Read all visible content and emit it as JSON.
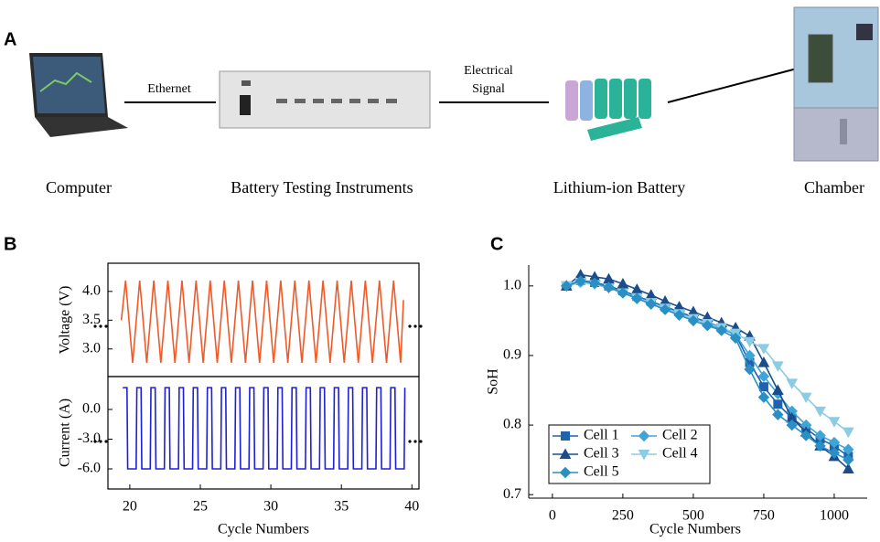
{
  "panel_a": {
    "panel_label": "A",
    "nodes": [
      {
        "label": "Computer"
      },
      {
        "label": "Battery Testing Instruments"
      },
      {
        "label": "Lithium-ion Battery"
      },
      {
        "label": "Chamber"
      }
    ],
    "links": [
      {
        "lines": [
          "Ethernet"
        ]
      },
      {
        "lines": [
          "Electrical",
          "Signal"
        ]
      }
    ]
  },
  "chart_data": [
    {
      "type": "line",
      "panel_label": "B",
      "ylabel": "Voltage (V)",
      "color": "#f05a28",
      "x": [
        19.4,
        19.7,
        20.2,
        20.7,
        21.2,
        21.7,
        22.2,
        22.7,
        23.2,
        23.7,
        24.2,
        24.7,
        25.2,
        25.7,
        26.2,
        26.7,
        27.2,
        27.7,
        28.2,
        28.7,
        29.2,
        29.7,
        30.2,
        30.7,
        31.2,
        31.7,
        32.2,
        32.7,
        33.2,
        33.7,
        34.2,
        34.7,
        35.2,
        35.7,
        36.2,
        36.7,
        37.2,
        37.7,
        38.2,
        38.7,
        39.2,
        39.4
      ],
      "values": [
        3.5,
        4.19,
        2.76,
        4.19,
        2.76,
        4.19,
        2.76,
        4.19,
        2.76,
        4.19,
        2.76,
        4.19,
        2.76,
        4.19,
        2.76,
        4.19,
        2.76,
        4.19,
        2.76,
        4.19,
        2.76,
        4.19,
        2.76,
        4.19,
        2.76,
        4.19,
        2.76,
        4.19,
        2.76,
        4.19,
        2.76,
        4.19,
        2.76,
        4.19,
        2.76,
        4.19,
        2.76,
        4.19,
        2.76,
        4.19,
        2.76,
        3.85
      ],
      "xlim": [
        18.45,
        40.5
      ],
      "ylim": [
        2.52,
        4.49
      ],
      "yticks": [
        {
          "value": 3,
          "label": "3.0"
        },
        {
          "value": 3.5,
          "label": "3.5"
        },
        {
          "value": 4,
          "label": "4.0"
        }
      ]
    },
    {
      "type": "line",
      "ylabel": "Current (A)",
      "xlabel": "Cycle Numbers",
      "color": "#1f1fd6",
      "x": [
        19.5,
        19.8,
        19.85,
        20.45,
        20.5,
        20.8,
        20.85,
        21.45,
        21.5,
        21.8,
        21.85,
        22.45,
        22.5,
        22.8,
        22.85,
        23.45,
        23.5,
        23.8,
        23.85,
        24.45,
        24.5,
        24.8,
        24.85,
        25.45,
        25.5,
        25.8,
        25.85,
        26.45,
        26.5,
        26.8,
        26.85,
        27.45,
        27.5,
        27.8,
        27.85,
        28.45,
        28.5,
        28.8,
        28.85,
        29.45,
        29.5,
        29.8,
        29.85,
        30.45,
        30.5,
        30.8,
        30.85,
        31.45,
        31.5,
        31.8,
        31.85,
        32.45,
        32.5,
        32.8,
        32.85,
        33.45,
        33.5,
        33.8,
        33.85,
        34.45,
        34.5,
        34.8,
        34.85,
        35.45,
        35.5,
        35.8,
        35.85,
        36.45,
        36.5,
        36.8,
        36.85,
        37.45,
        37.5,
        37.8,
        37.85,
        38.45,
        38.5,
        38.8,
        38.85,
        39.45,
        39.5
      ],
      "values": [
        2.2,
        2.2,
        -6,
        -6,
        2.2,
        2.2,
        -6,
        -6,
        2.2,
        2.2,
        -6,
        -6,
        2.2,
        2.2,
        -6,
        -6,
        2.2,
        2.2,
        -6,
        -6,
        2.2,
        2.2,
        -6,
        -6,
        2.2,
        2.2,
        -6,
        -6,
        2.2,
        2.2,
        -6,
        -6,
        2.2,
        2.2,
        -6,
        -6,
        2.2,
        2.2,
        -6,
        -6,
        2.2,
        2.2,
        -6,
        -6,
        2.2,
        2.2,
        -6,
        -6,
        2.2,
        2.2,
        -6,
        -6,
        2.2,
        2.2,
        -6,
        -6,
        2.2,
        2.2,
        -6,
        -6,
        2.2,
        2.2,
        -6,
        -6,
        2.2,
        2.2,
        -6,
        -6,
        2.2,
        2.2,
        -6,
        -6,
        2.2,
        2.2,
        -6,
        -6,
        2.2,
        2.2,
        -6,
        -6,
        2.2
      ],
      "xlim": [
        18.45,
        40.5
      ],
      "ylim": [
        -8.03,
        3.32
      ],
      "xticks": [
        20,
        25,
        30,
        35,
        40
      ],
      "yticks": [
        {
          "value": -6,
          "label": "-6.0"
        },
        {
          "value": -3,
          "label": "-3.0"
        },
        {
          "value": 0,
          "label": "0.0"
        }
      ]
    },
    {
      "type": "line",
      "panel_label": "C",
      "ylabel": "SoH",
      "xlabel": "Cycle Numbers",
      "legend": "lower left",
      "x": [
        50,
        100,
        150,
        200,
        250,
        300,
        350,
        400,
        450,
        500,
        550,
        600,
        650,
        700,
        750,
        800,
        850,
        900,
        950,
        1000,
        1050
      ],
      "series": [
        {
          "name": "Cell 1",
          "color": "#1f63ad",
          "marker": "square",
          "values": [
            1.0,
            1.008,
            1.005,
            1.0,
            0.993,
            0.985,
            0.978,
            0.97,
            0.963,
            0.955,
            0.948,
            0.94,
            0.93,
            0.89,
            0.855,
            0.83,
            0.81,
            0.795,
            0.78,
            0.77,
            0.755
          ]
        },
        {
          "name": "Cell 2",
          "color": "#3fa4d6",
          "marker": "diamond",
          "values": [
            1.0,
            1.005,
            1.003,
            0.998,
            0.99,
            0.982,
            0.975,
            0.968,
            0.96,
            0.953,
            0.945,
            0.938,
            0.93,
            0.9,
            0.87,
            0.845,
            0.82,
            0.8,
            0.785,
            0.775,
            0.765
          ]
        },
        {
          "name": "Cell 3",
          "color": "#1b4c8c",
          "marker": "triangle-up",
          "values": [
            1.0,
            1.016,
            1.013,
            1.01,
            1.003,
            0.995,
            0.987,
            0.978,
            0.97,
            0.963,
            0.955,
            0.947,
            0.94,
            0.928,
            0.89,
            0.85,
            0.81,
            0.79,
            0.77,
            0.755,
            0.737
          ]
        },
        {
          "name": "Cell 4",
          "color": "#8ccbe4",
          "marker": "triangle-down",
          "values": [
            1.0,
            1.005,
            1.002,
            0.997,
            0.99,
            0.983,
            0.976,
            0.968,
            0.96,
            0.953,
            0.946,
            0.94,
            0.932,
            0.92,
            0.91,
            0.885,
            0.86,
            0.84,
            0.82,
            0.805,
            0.79
          ]
        },
        {
          "name": "Cell 5",
          "color": "#2a8fc5",
          "marker": "diamond",
          "values": [
            1.0,
            1.007,
            1.004,
            0.998,
            0.99,
            0.982,
            0.974,
            0.966,
            0.958,
            0.95,
            0.943,
            0.936,
            0.925,
            0.88,
            0.84,
            0.815,
            0.8,
            0.785,
            0.77,
            0.76,
            0.75
          ]
        }
      ],
      "xlim": [
        -84,
        1117
      ],
      "ylim": [
        0.695,
        1.03
      ],
      "xticks": [
        0,
        250,
        500,
        750,
        1000
      ],
      "yticks": [
        0.7,
        0.8,
        0.9,
        {
          "value": 1,
          "label": "1.0"
        }
      ]
    }
  ]
}
